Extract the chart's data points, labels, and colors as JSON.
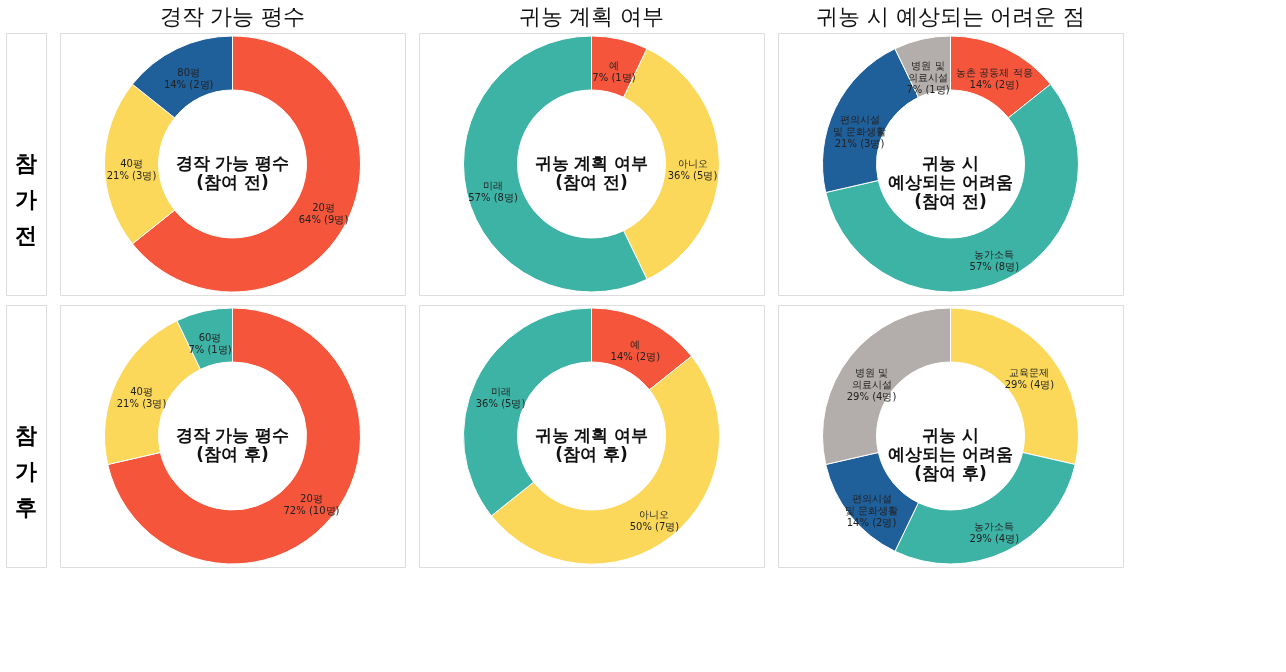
{
  "chart_data": [
    {
      "type": "donut",
      "title": "경작 가능 평수",
      "categories": [
        "20평",
        "40평",
        "80평"
      ],
      "values": [
        9,
        3,
        2
      ],
      "colors": [
        "#f4553b",
        "#fbd85a",
        "#1f5f9a"
      ],
      "value_labels": [
        "64% (9명)",
        "21% (3명)",
        "14% (2명)"
      ],
      "annotations": [
        "경작 가능 평수\n(참여 전)",
        "참\n가\n전"
      ]
    },
    {
      "type": "donut",
      "title": "귀농 계획 여부",
      "categories": [
        "예",
        "아니오",
        "미래"
      ],
      "values": [
        1,
        5,
        8
      ],
      "colors": [
        "#f4553b",
        "#fbd85a",
        "#3db3a5"
      ],
      "value_labels": [
        "7% (1명)",
        "36% (5명)",
        "57% (8명)"
      ],
      "annotations": [
        "귀농 계획 여부\n(참여 전)"
      ]
    },
    {
      "type": "donut",
      "title": "귀농 시 예상되는 어려운 점",
      "categories": [
        "농촌 공동체 적응",
        "농가소득",
        "편의시설\n및 문화생활",
        "병원 및\n의료시설"
      ],
      "values": [
        2,
        8,
        3,
        1
      ],
      "colors": [
        "#f4553b",
        "#3db3a5",
        "#1f5f9a",
        "#b3aeab"
      ],
      "value_labels": [
        "14% (2명)",
        "57% (8명)",
        "21% (3명)",
        "7% (1명)"
      ],
      "annotations": [
        "귀농 시\n예상되는 어려움\n(참여 전)"
      ]
    },
    {
      "type": "donut",
      "categories": [
        "20평",
        "40평",
        "60평"
      ],
      "values": [
        10,
        3,
        1
      ],
      "colors": [
        "#f4553b",
        "#fbd85a",
        "#3db3a5"
      ],
      "value_labels": [
        "72% (10명)",
        "21% (3명)",
        "7% (1명)"
      ],
      "annotations": [
        "경작 가능 평수\n(참여 후)",
        "참\n가\n후"
      ]
    },
    {
      "type": "donut",
      "categories": [
        "예",
        "아니오",
        "미래"
      ],
      "values": [
        2,
        7,
        5
      ],
      "colors": [
        "#f4553b",
        "#fbd85a",
        "#3db3a5"
      ],
      "value_labels": [
        "14% (2명)",
        "50% (7명)",
        "36% (5명)"
      ],
      "annotations": [
        "귀농 계획 여부\n(참여 후)"
      ]
    },
    {
      "type": "donut",
      "categories": [
        "교육문제",
        "농가소득",
        "편의시설\n및 문화생활",
        "병원 및\n의료시설"
      ],
      "values": [
        4,
        4,
        2,
        4
      ],
      "colors": [
        "#fbd85a",
        "#3db3a5",
        "#1f5f9a",
        "#b3aeab"
      ],
      "value_labels": [
        "29% (4명)",
        "29% (4명)",
        "14% (2명)",
        "29% (4명)"
      ],
      "annotations": [
        "귀농 시\n예상되는 어려움\n(참여 후)"
      ]
    }
  ]
}
